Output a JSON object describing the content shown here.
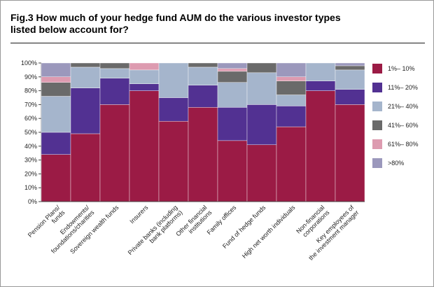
{
  "title": "Fig.3  How much of your hedge fund AUM do the various investor types listed below account for?",
  "chart_data": {
    "type": "bar",
    "stacked": true,
    "title": "Fig.3  How much of your hedge fund AUM do the various investor types listed below account for?",
    "categories": [
      [
        "Pension Plans/",
        "funds"
      ],
      [
        "Endowments/",
        "foundations/charities"
      ],
      [
        "Sovereign wealth funds"
      ],
      [
        "Insurers"
      ],
      [
        "Private banks (including",
        "bank platforms)"
      ],
      [
        "Other financial",
        "institutions"
      ],
      [
        "Family offices"
      ],
      [
        "Fund of hedge funds"
      ],
      [
        "High net worth individuals"
      ],
      [
        "Non-financial",
        "corporations"
      ],
      [
        "Key employees of",
        "the investment manager"
      ]
    ],
    "series": [
      {
        "name": "1%– 10%",
        "color": "#9b1b45",
        "values": [
          34,
          49,
          70,
          80,
          58,
          68,
          44,
          41,
          54,
          80,
          70
        ]
      },
      {
        "name": "11%– 20%",
        "color": "#523192",
        "values": [
          16,
          33,
          19,
          5,
          17,
          16,
          24,
          29,
          15,
          7,
          11
        ]
      },
      {
        "name": "21%– 40%",
        "color": "#a5b5cc",
        "values": [
          26,
          15,
          7,
          10,
          25,
          13,
          18,
          23,
          8,
          13,
          14
        ]
      },
      {
        "name": "41%– 60%",
        "color": "#6a6a6a",
        "values": [
          10,
          3,
          4,
          0,
          0,
          3,
          8,
          7,
          10,
          0,
          3
        ]
      },
      {
        "name": "61%– 80%",
        "color": "#dd9bb0",
        "values": [
          4,
          0,
          0,
          5,
          0,
          0,
          2,
          0,
          3,
          0,
          0
        ]
      },
      {
        "name": ">80%",
        "color": "#9b98bc",
        "values": [
          10,
          0,
          0,
          0,
          0,
          0,
          4,
          0,
          10,
          0,
          2
        ]
      }
    ],
    "yticks": [
      "0%",
      "10%",
      "20%",
      "30%",
      "40%",
      "50%",
      "60%",
      "70%",
      "80%",
      "90%",
      "100%"
    ],
    "ylim": [
      0,
      100
    ],
    "legend_position": "right",
    "grid": false
  }
}
